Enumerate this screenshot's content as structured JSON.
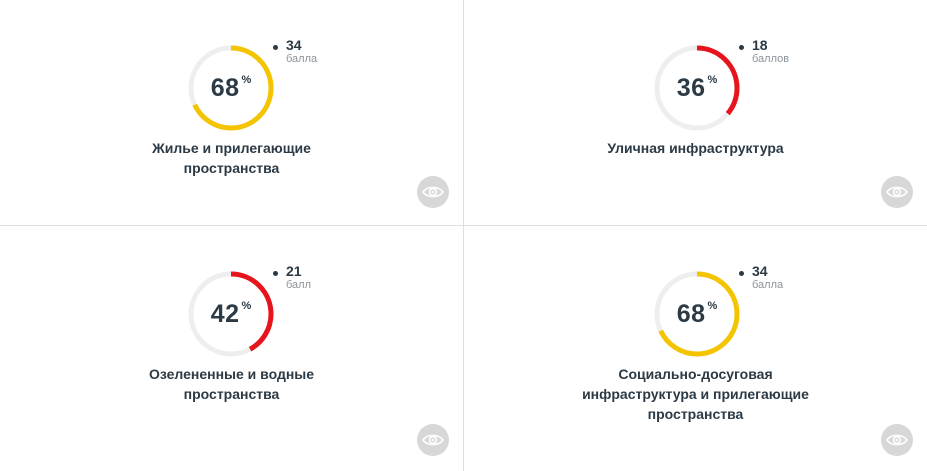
{
  "cards": [
    {
      "percent": 68,
      "percent_num": "68",
      "percent_sign": "%",
      "score": "34",
      "unit": "балла",
      "title_lines": [
        "Жилье и прилегающие",
        "пространства"
      ],
      "color": "#f5c400",
      "icon": "eye-icon"
    },
    {
      "percent": 36,
      "percent_num": "36",
      "percent_sign": "%",
      "score": "18",
      "unit": "баллов",
      "title_lines": [
        "Уличная инфраструктура"
      ],
      "color": "#e8141b",
      "icon": "eye-icon"
    },
    {
      "percent": 42,
      "percent_num": "42",
      "percent_sign": "%",
      "score": "21",
      "unit": "балл",
      "title_lines": [
        "Озелененные и водные",
        "пространства"
      ],
      "color": "#e8141b",
      "icon": "eye-icon"
    },
    {
      "percent": 68,
      "percent_num": "68",
      "percent_sign": "%",
      "score": "34",
      "unit": "балла",
      "title_lines": [
        "Социально-досуговая",
        "инфраструктура и прилегающие",
        "пространства"
      ],
      "color": "#f5c400",
      "icon": "eye-icon"
    }
  ],
  "colors": {
    "track": "#eeeeee",
    "text": "#2c3a45",
    "muted": "#8a949b",
    "eye_bg": "#d7d7d7"
  }
}
